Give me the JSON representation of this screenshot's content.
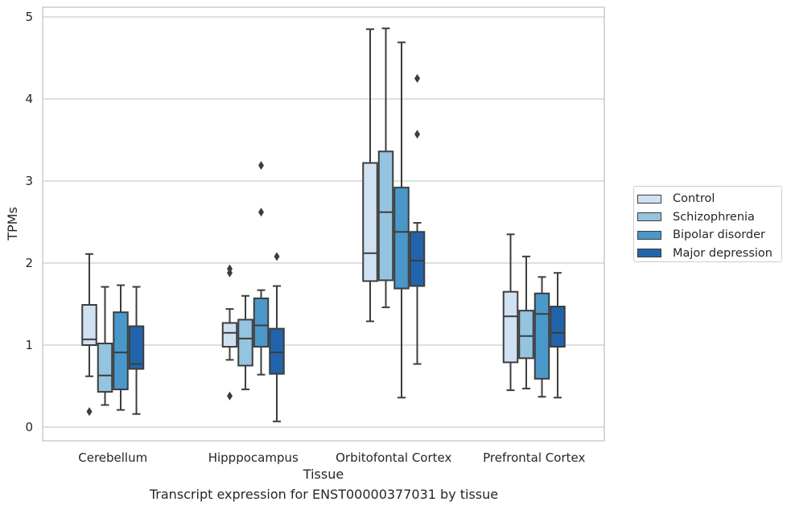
{
  "chart_data": {
    "type": "boxplot",
    "xlabel": "Tissue",
    "ylabel": "TPMs",
    "caption": "Transcript expression for ENST00000377031 by tissue",
    "ylim": [
      -0.15,
      5.12
    ],
    "yticks": [
      0,
      1,
      2,
      3,
      4,
      5
    ],
    "grid": "horizontal",
    "legend_position": "right",
    "categories": [
      "Cerebellum",
      "Hipppocampus",
      "Orbitofontal Cortex",
      "Prefrontal Cortex"
    ],
    "series": [
      {
        "name": "Control",
        "color": "#d0e1f2",
        "boxes": [
          {
            "whisker_low": 0.62,
            "q1": 1.0,
            "median": 1.07,
            "q3": 1.49,
            "whisker_high": 2.11,
            "outliers": [
              0.19
            ]
          },
          {
            "whisker_low": 0.82,
            "q1": 0.98,
            "median": 1.15,
            "q3": 1.27,
            "whisker_high": 1.44,
            "outliers": [
              1.88,
              1.93,
              0.38
            ]
          },
          {
            "whisker_low": 1.29,
            "q1": 1.78,
            "median": 2.12,
            "q3": 3.22,
            "whisker_high": 4.85,
            "outliers": []
          },
          {
            "whisker_low": 0.45,
            "q1": 0.79,
            "median": 1.35,
            "q3": 1.65,
            "whisker_high": 2.35,
            "outliers": []
          }
        ]
      },
      {
        "name": "Schizophrenia",
        "color": "#94c4df",
        "boxes": [
          {
            "whisker_low": 0.27,
            "q1": 0.43,
            "median": 0.63,
            "q3": 1.02,
            "whisker_high": 1.71,
            "outliers": []
          },
          {
            "whisker_low": 0.46,
            "q1": 0.75,
            "median": 1.08,
            "q3": 1.31,
            "whisker_high": 1.6,
            "outliers": []
          },
          {
            "whisker_low": 1.46,
            "q1": 1.79,
            "median": 2.62,
            "q3": 3.36,
            "whisker_high": 4.86,
            "outliers": []
          },
          {
            "whisker_low": 0.47,
            "q1": 0.84,
            "median": 1.11,
            "q3": 1.42,
            "whisker_high": 2.08,
            "outliers": []
          }
        ]
      },
      {
        "name": "Bipolar disorder",
        "color": "#4a98c9",
        "boxes": [
          {
            "whisker_low": 0.21,
            "q1": 0.46,
            "median": 0.91,
            "q3": 1.4,
            "whisker_high": 1.73,
            "outliers": []
          },
          {
            "whisker_low": 0.64,
            "q1": 0.98,
            "median": 1.24,
            "q3": 1.57,
            "whisker_high": 1.67,
            "outliers": [
              3.19,
              2.62
            ]
          },
          {
            "whisker_low": 0.36,
            "q1": 1.69,
            "median": 2.38,
            "q3": 2.92,
            "whisker_high": 4.69,
            "outliers": []
          },
          {
            "whisker_low": 0.37,
            "q1": 0.59,
            "median": 1.38,
            "q3": 1.63,
            "whisker_high": 1.83,
            "outliers": []
          }
        ]
      },
      {
        "name": "Major depression",
        "color": "#2164ab",
        "boxes": [
          {
            "whisker_low": 0.16,
            "q1": 0.71,
            "median": 0.77,
            "q3": 1.23,
            "whisker_high": 1.71,
            "outliers": []
          },
          {
            "whisker_low": 0.07,
            "q1": 0.65,
            "median": 0.91,
            "q3": 1.2,
            "whisker_high": 1.72,
            "outliers": [
              2.08
            ]
          },
          {
            "whisker_low": 0.77,
            "q1": 1.72,
            "median": 2.03,
            "q3": 2.38,
            "whisker_high": 2.49,
            "outliers": [
              4.25,
              3.57
            ]
          },
          {
            "whisker_low": 0.36,
            "q1": 0.98,
            "median": 1.15,
            "q3": 1.47,
            "whisker_high": 1.88,
            "outliers": []
          }
        ]
      }
    ]
  }
}
